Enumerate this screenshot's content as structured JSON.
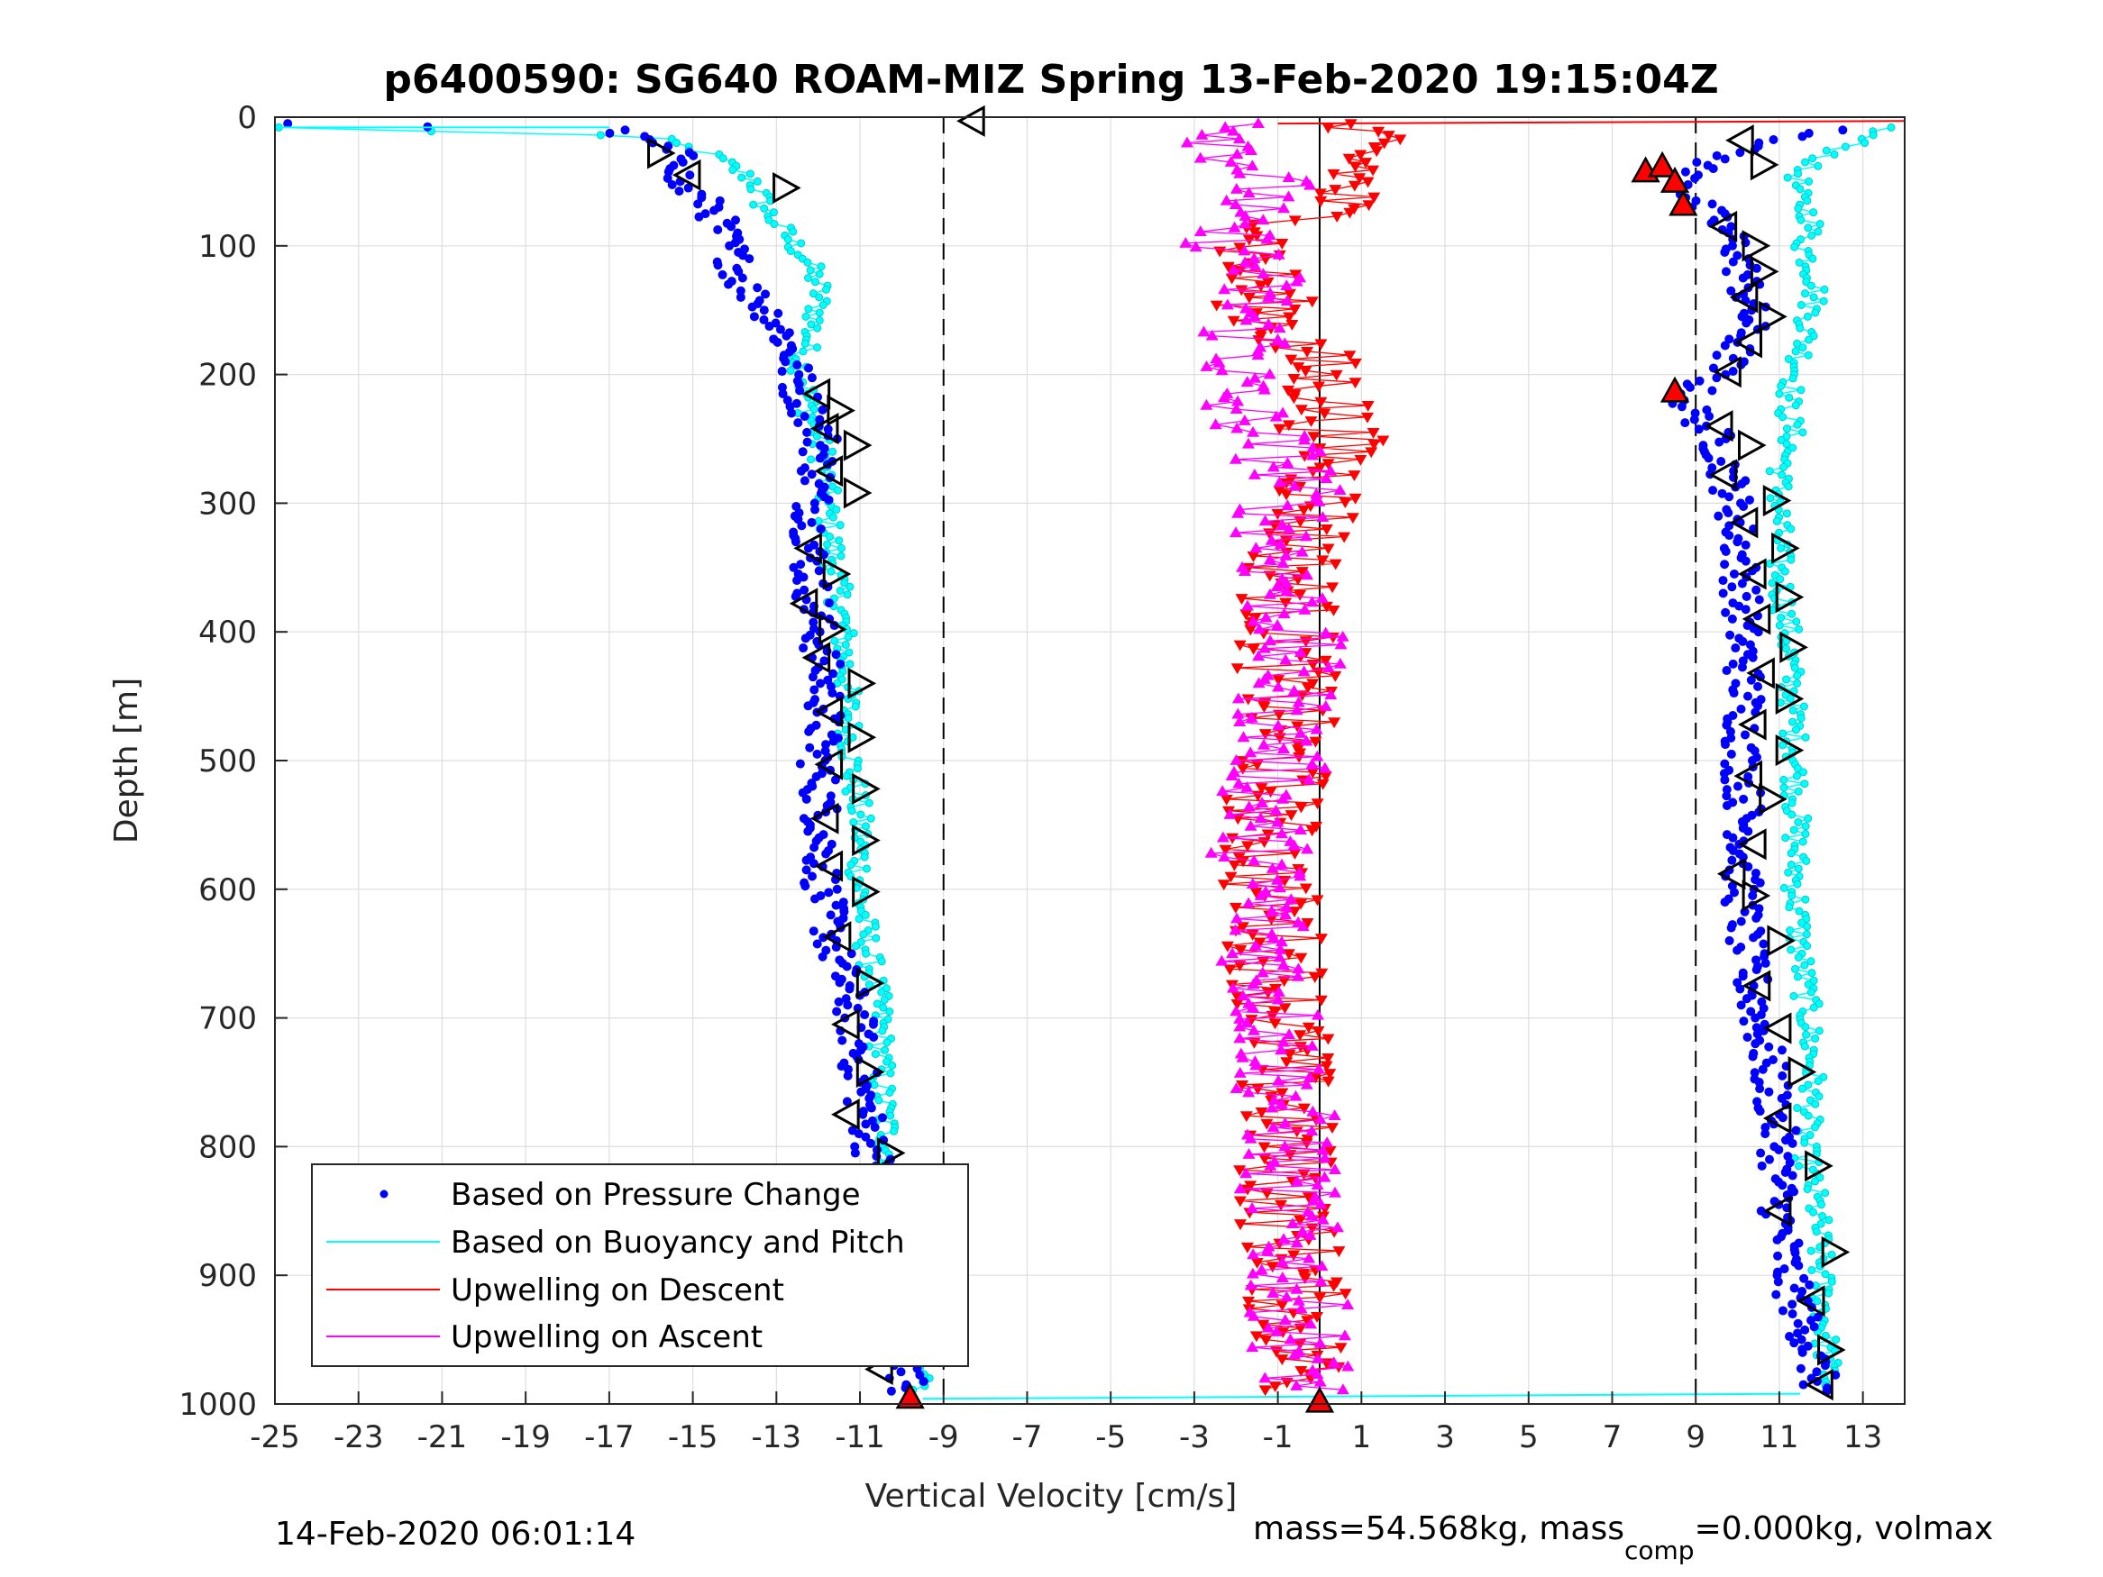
{
  "chart_data": {
    "type": "scatter",
    "title": "p6400590: SG640 ROAM-MIZ Spring 13-Feb-2020 19:15:04Z",
    "xlabel": "Vertical Velocity [cm/s]",
    "ylabel": "Depth [m]",
    "xlim": [
      -25,
      14
    ],
    "ylim": [
      0,
      1000
    ],
    "y_reversed": true,
    "grid": true,
    "x_ticks": [
      -25,
      -23,
      -21,
      -19,
      -17,
      -15,
      -13,
      -11,
      -9,
      -7,
      -5,
      -3,
      -1,
      1,
      3,
      5,
      7,
      9,
      11,
      13
    ],
    "y_ticks": [
      0,
      100,
      200,
      300,
      400,
      500,
      600,
      700,
      800,
      900,
      1000
    ],
    "reference_lines": [
      {
        "x": -9,
        "style": "dashed",
        "color": "#000000"
      },
      {
        "x": 0,
        "style": "solid",
        "color": "#000000"
      },
      {
        "x": 9,
        "style": "dashed",
        "color": "#000000"
      }
    ],
    "legend_position": "bottom-left",
    "series": [
      {
        "name": "Based on Pressure Change",
        "color": "#0000ff",
        "marker": "dot",
        "profiles": [
          {
            "depth": [
              5,
              10,
              20,
              35,
              50,
              70,
              90,
              110,
              130,
              150,
              170,
              190,
              210,
              250,
              300,
              350,
              400,
              450,
              500,
              550,
              600,
              650,
              700,
              750,
              800,
              850,
              900,
              950,
              990
            ],
            "velocity": [
              -25,
              -17,
              -16,
              -15,
              -15.5,
              -14.5,
              -14.3,
              -14,
              -13.8,
              -13.2,
              -12.8,
              -12.6,
              -12.5,
              -11.9,
              -12.1,
              -12.2,
              -12.0,
              -11.8,
              -12.0,
              -11.9,
              -11.9,
              -11.6,
              -11.1,
              -11.0,
              -10.7,
              -10.4,
              -10.4,
              -10.1,
              -9.8
            ]
          },
          {
            "depth": [
              10,
              25,
              45,
              65,
              80,
              100,
              130,
              160,
              190,
              220,
              250,
              280,
              320,
              360,
              400,
              450,
              500,
              550,
              600,
              650,
              700,
              750,
              800,
              850,
              900,
              950,
              990
            ],
            "velocity": [
              12.5,
              10,
              8.8,
              8.9,
              9.5,
              10,
              10.2,
              10.3,
              9.8,
              8.7,
              9.5,
              9.8,
              10.0,
              10.1,
              10.1,
              10.2,
              10.1,
              10.2,
              10.1,
              10.2,
              10.5,
              10.8,
              11.0,
              11.0,
              11.2,
              11.7,
              12.0
            ]
          }
        ]
      },
      {
        "name": "Based on Buoyancy and Pitch",
        "color": "#00ffff",
        "marker": "circle",
        "profiles": [
          {
            "depth": [
              8,
              15,
              30,
              50,
              70,
              90,
              110,
              130,
              150,
              170,
              190,
              210,
              230,
              260,
              300,
              350,
              400,
              450,
              500,
              550,
              600,
              650,
              700,
              750,
              800,
              850,
              900,
              950,
              990
            ],
            "velocity": [
              -25,
              -16,
              -14.5,
              -13.5,
              -13.3,
              -12.8,
              -12.3,
              -12.0,
              -12.0,
              -12.2,
              -12.4,
              -12.3,
              -12.2,
              -11.9,
              -11.8,
              -11.6,
              -11.4,
              -11.3,
              -11.2,
              -11.0,
              -11.0,
              -10.8,
              -10.5,
              -10.5,
              -10.3,
              -10.2,
              -10.1,
              -10.0,
              -9.5
            ]
          },
          {
            "depth": [
              8,
              20,
              40,
              60,
              80,
              100,
              130,
              160,
              190,
              220,
              250,
              280,
              300,
              350,
              400,
              450,
              500,
              550,
              600,
              650,
              700,
              750,
              800,
              850,
              900,
              950,
              990
            ],
            "velocity": [
              13.5,
              12.8,
              11.5,
              11.4,
              11.8,
              11.6,
              11.9,
              11.7,
              11.5,
              11.2,
              11.3,
              11.0,
              11.0,
              11.0,
              11.2,
              11.3,
              11.4,
              11.4,
              11.4,
              11.5,
              11.7,
              11.8,
              11.6,
              11.9,
              12.0,
              12.1,
              12.2
            ]
          }
        ]
      },
      {
        "name": "Upwelling on Descent",
        "color": "#ff0000",
        "marker": "triangle-down",
        "depth": [
          5,
          20,
          40,
          60,
          80,
          100,
          120,
          140,
          160,
          180,
          200,
          220,
          240,
          260,
          280,
          300,
          350,
          400,
          450,
          500,
          550,
          600,
          650,
          700,
          750,
          800,
          850,
          900,
          930,
          960,
          990
        ],
        "velocity": [
          0.5,
          0.8,
          1.0,
          0.5,
          -0.2,
          -1.5,
          -1.6,
          -1.4,
          -1.0,
          -0.5,
          0.0,
          0.3,
          0.2,
          0.5,
          0.2,
          0.0,
          -0.6,
          -0.8,
          -0.8,
          -0.9,
          -1.2,
          -1.2,
          -1.0,
          -0.8,
          -0.9,
          -0.8,
          -0.8,
          -0.5,
          -0.6,
          -0.4,
          -0.3
        ]
      },
      {
        "name": "Upwelling on Ascent",
        "color": "#ff00ff",
        "marker": "triangle-up",
        "depth": [
          5,
          20,
          40,
          60,
          80,
          100,
          120,
          140,
          160,
          180,
          200,
          220,
          240,
          260,
          280,
          300,
          350,
          400,
          450,
          500,
          550,
          600,
          650,
          700,
          750,
          800,
          850,
          900,
          930,
          960,
          990
        ],
        "velocity": [
          -1.5,
          -2.0,
          -1.5,
          -1.2,
          -2.5,
          -2.0,
          -1.5,
          -1.6,
          -1.8,
          -1.5,
          -2.0,
          -2.2,
          -1.5,
          -1.0,
          -0.5,
          -0.8,
          -0.9,
          -0.6,
          -0.8,
          -1.0,
          -1.4,
          -1.4,
          -1.2,
          -1.0,
          -0.9,
          -0.7,
          -0.8,
          -0.6,
          -0.5,
          -0.4,
          -0.3
        ]
      }
    ],
    "stall_markers": [
      {
        "x": -8.3,
        "y": 3,
        "direction": "left"
      },
      {
        "x": -15.8,
        "y": 28,
        "direction": "right"
      },
      {
        "x": -15.1,
        "y": 45,
        "direction": "left"
      },
      {
        "x": -12.8,
        "y": 55,
        "direction": "right"
      },
      {
        "x": -12.0,
        "y": 215,
        "direction": "left"
      },
      {
        "x": -11.5,
        "y": 228,
        "direction": "right"
      },
      {
        "x": -11.8,
        "y": 242,
        "direction": "left"
      },
      {
        "x": -11.1,
        "y": 255,
        "direction": "right"
      },
      {
        "x": -11.7,
        "y": 275,
        "direction": "left"
      },
      {
        "x": -11.1,
        "y": 292,
        "direction": "right"
      },
      {
        "x": -12.2,
        "y": 335,
        "direction": "left"
      },
      {
        "x": -11.6,
        "y": 355,
        "direction": "right"
      },
      {
        "x": -12.3,
        "y": 378,
        "direction": "left"
      },
      {
        "x": -11.7,
        "y": 398,
        "direction": "right"
      },
      {
        "x": -12.0,
        "y": 420,
        "direction": "left"
      },
      {
        "x": -11.0,
        "y": 440,
        "direction": "right"
      },
      {
        "x": -11.7,
        "y": 462,
        "direction": "left"
      },
      {
        "x": -11.0,
        "y": 482,
        "direction": "right"
      },
      {
        "x": -11.7,
        "y": 503,
        "direction": "left"
      },
      {
        "x": -10.9,
        "y": 522,
        "direction": "right"
      },
      {
        "x": -11.8,
        "y": 545,
        "direction": "left"
      },
      {
        "x": -10.9,
        "y": 562,
        "direction": "right"
      },
      {
        "x": -11.7,
        "y": 582,
        "direction": "left"
      },
      {
        "x": -10.9,
        "y": 602,
        "direction": "right"
      },
      {
        "x": -11.5,
        "y": 637,
        "direction": "left"
      },
      {
        "x": -10.8,
        "y": 673,
        "direction": "right"
      },
      {
        "x": -11.3,
        "y": 705,
        "direction": "left"
      },
      {
        "x": -10.8,
        "y": 742,
        "direction": "right"
      },
      {
        "x": -11.3,
        "y": 775,
        "direction": "left"
      },
      {
        "x": -10.3,
        "y": 805,
        "direction": "right"
      },
      {
        "x": -11.0,
        "y": 840,
        "direction": "left"
      },
      {
        "x": -10.7,
        "y": 875,
        "direction": "right"
      },
      {
        "x": -10.7,
        "y": 905,
        "direction": "left"
      },
      {
        "x": -10.4,
        "y": 940,
        "direction": "right"
      },
      {
        "x": -10.5,
        "y": 973,
        "direction": "left"
      },
      {
        "x": 10.1,
        "y": 18,
        "direction": "left"
      },
      {
        "x": 10.6,
        "y": 37,
        "direction": "right"
      },
      {
        "x": 9.7,
        "y": 85,
        "direction": "left"
      },
      {
        "x": 10.4,
        "y": 100,
        "direction": "right"
      },
      {
        "x": 10.6,
        "y": 120,
        "direction": "right"
      },
      {
        "x": 10.2,
        "y": 140,
        "direction": "left"
      },
      {
        "x": 10.8,
        "y": 155,
        "direction": "right"
      },
      {
        "x": 10.3,
        "y": 175,
        "direction": "left"
      },
      {
        "x": 9.8,
        "y": 198,
        "direction": "left"
      },
      {
        "x": 9.6,
        "y": 240,
        "direction": "left"
      },
      {
        "x": 10.3,
        "y": 255,
        "direction": "right"
      },
      {
        "x": 9.7,
        "y": 278,
        "direction": "left"
      },
      {
        "x": 10.9,
        "y": 298,
        "direction": "right"
      },
      {
        "x": 10.2,
        "y": 315,
        "direction": "left"
      },
      {
        "x": 11.1,
        "y": 335,
        "direction": "right"
      },
      {
        "x": 10.4,
        "y": 355,
        "direction": "left"
      },
      {
        "x": 11.2,
        "y": 373,
        "direction": "right"
      },
      {
        "x": 10.5,
        "y": 390,
        "direction": "left"
      },
      {
        "x": 11.3,
        "y": 412,
        "direction": "right"
      },
      {
        "x": 10.6,
        "y": 432,
        "direction": "left"
      },
      {
        "x": 11.2,
        "y": 452,
        "direction": "right"
      },
      {
        "x": 10.4,
        "y": 472,
        "direction": "left"
      },
      {
        "x": 11.2,
        "y": 492,
        "direction": "right"
      },
      {
        "x": 10.3,
        "y": 512,
        "direction": "left"
      },
      {
        "x": 10.8,
        "y": 530,
        "direction": "right"
      },
      {
        "x": 10.4,
        "y": 565,
        "direction": "left"
      },
      {
        "x": 9.9,
        "y": 588,
        "direction": "left"
      },
      {
        "x": 10.4,
        "y": 605,
        "direction": "right"
      },
      {
        "x": 11.0,
        "y": 640,
        "direction": "right"
      },
      {
        "x": 10.5,
        "y": 675,
        "direction": "left"
      },
      {
        "x": 11.0,
        "y": 708,
        "direction": "left"
      },
      {
        "x": 11.5,
        "y": 742,
        "direction": "right"
      },
      {
        "x": 11.0,
        "y": 778,
        "direction": "left"
      },
      {
        "x": 11.9,
        "y": 815,
        "direction": "right"
      },
      {
        "x": 11.0,
        "y": 850,
        "direction": "left"
      },
      {
        "x": 12.3,
        "y": 882,
        "direction": "right"
      },
      {
        "x": 11.8,
        "y": 920,
        "direction": "left"
      },
      {
        "x": 12.2,
        "y": 958,
        "direction": "right"
      },
      {
        "x": 12.0,
        "y": 985,
        "direction": "left"
      }
    ],
    "upwelling_triangle_markers": [
      {
        "x": -9.8,
        "y": 995,
        "direction": "up"
      },
      {
        "x": 0.0,
        "y": 998,
        "direction": "up"
      },
      {
        "x": 7.8,
        "y": 42,
        "direction": "up"
      },
      {
        "x": 8.2,
        "y": 38,
        "direction": "up"
      },
      {
        "x": 8.5,
        "y": 50,
        "direction": "up"
      },
      {
        "x": 8.7,
        "y": 68,
        "direction": "up"
      },
      {
        "x": 8.5,
        "y": 213,
        "direction": "up"
      }
    ]
  },
  "footer": {
    "timestamp": "14-Feb-2020 06:01:14",
    "mass_text": "mass=54.568kg, mass",
    "mass_sub": "comp",
    "mass_rest": "=0.000kg, volmax"
  }
}
